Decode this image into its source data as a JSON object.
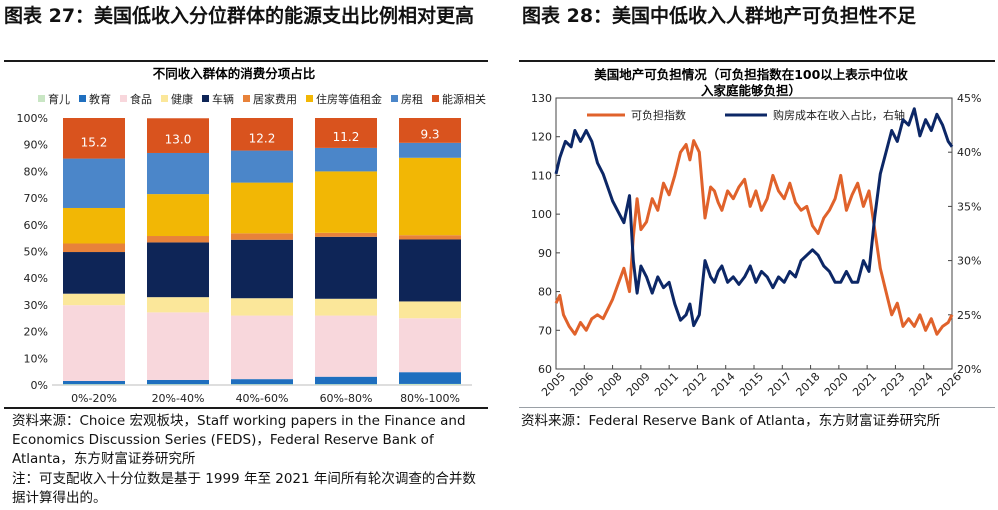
{
  "left": {
    "figure_title": "图表 27：美国低收入分位群体的能源支出比例相对更高",
    "source": "资料来源：Choice 宏观板块，Staff working papers in the Finance and Economics Discussion Series (FEDS)，Federal Reserve Bank of Atlanta，东方财富证券研究所",
    "note": "注：可支配收入十分位数是基于 1999 年至 2021 年间所有轮次调查的合并数据计算得出的。"
  },
  "right": {
    "figure_title": "图表 28：美国中低收入人群地产可负担性不足",
    "source": "资料来源：Federal Reserve Bank of Atlanta，东方财富证券研究所"
  },
  "chart_data": [
    {
      "type": "bar",
      "stacked": true,
      "percent": true,
      "title": "不同收入群体的消费分项占比",
      "categories": [
        "0%-20%",
        "20%-40%",
        "40%-60%",
        "60%-80%",
        "80%-100%"
      ],
      "ylim": [
        0,
        100
      ],
      "yticks": [
        "0%",
        "10%",
        "20%",
        "30%",
        "40%",
        "50%",
        "60%",
        "70%",
        "80%",
        "90%",
        "100%"
      ],
      "legend_position": "top",
      "series": [
        {
          "name": "育儿",
          "color": "#c9e6c4",
          "values": [
            0.3,
            0.3,
            0.3,
            0.3,
            0.4
          ]
        },
        {
          "name": "教育",
          "color": "#1f6fbf",
          "values": [
            1.2,
            1.6,
            1.9,
            2.8,
            4.4
          ]
        },
        {
          "name": "食品",
          "color": "#f8d7dc",
          "values": [
            28.4,
            25.3,
            23.8,
            22.9,
            20.2
          ]
        },
        {
          "name": "健康",
          "color": "#fbe79a",
          "values": [
            4.3,
            5.7,
            6.5,
            6.3,
            6.3
          ]
        },
        {
          "name": "车辆",
          "color": "#0e2557",
          "values": [
            15.6,
            20.5,
            21.9,
            23.2,
            23.2
          ]
        },
        {
          "name": "居家费用",
          "color": "#e8823a",
          "values": [
            3.2,
            2.4,
            2.4,
            1.5,
            1.6
          ]
        },
        {
          "name": "住房等值租金",
          "color": "#f2b705",
          "values": [
            13.3,
            15.7,
            19.0,
            23.0,
            29.0
          ]
        },
        {
          "name": "房租",
          "color": "#4b86c9",
          "values": [
            18.5,
            15.4,
            12.0,
            8.8,
            5.6
          ]
        },
        {
          "name": "能源相关",
          "color": "#d9531e",
          "values": [
            15.2,
            13.0,
            12.2,
            11.2,
            9.3
          ]
        }
      ],
      "data_labels": [
        "15.2",
        "13.0",
        "12.2",
        "11.2",
        "9.3"
      ]
    },
    {
      "type": "line",
      "title": "美国地产可负担情况（可负担指数在100以上表示中位收入家庭能够负担）",
      "legend_position": "top",
      "x_ticks": [
        "2005",
        "2006",
        "2008",
        "2009",
        "2011",
        "2012",
        "2014",
        "2015",
        "2017",
        "2018",
        "2020",
        "2021",
        "2023",
        "2024",
        "2026"
      ],
      "x_range": [
        2005,
        2026
      ],
      "left_axis": {
        "ylim": [
          60,
          130
        ],
        "ticks": [
          60,
          70,
          80,
          90,
          100,
          110,
          120,
          130
        ]
      },
      "right_axis": {
        "ylim": [
          20,
          45
        ],
        "ticks": [
          "20%",
          "25%",
          "30%",
          "35%",
          "40%",
          "45%"
        ]
      },
      "series": [
        {
          "name": "可负担指数",
          "axis": "left",
          "color": "#e0622b",
          "x": [
            2005.0,
            2005.2,
            2005.4,
            2005.7,
            2006.0,
            2006.3,
            2006.6,
            2006.9,
            2007.2,
            2007.5,
            2007.8,
            2008.0,
            2008.3,
            2008.6,
            2008.9,
            2009.1,
            2009.3,
            2009.5,
            2009.8,
            2010.1,
            2010.4,
            2010.7,
            2011.0,
            2011.3,
            2011.6,
            2011.9,
            2012.1,
            2012.3,
            2012.6,
            2012.9,
            2013.2,
            2013.4,
            2013.6,
            2013.8,
            2014.1,
            2014.4,
            2014.7,
            2015.0,
            2015.3,
            2015.6,
            2015.9,
            2016.2,
            2016.5,
            2016.8,
            2017.1,
            2017.4,
            2017.7,
            2018.0,
            2018.3,
            2018.6,
            2018.9,
            2019.2,
            2019.5,
            2019.8,
            2020.1,
            2020.4,
            2020.7,
            2021.0,
            2021.3,
            2021.6,
            2021.9,
            2022.2,
            2022.5,
            2022.8,
            2023.1,
            2023.4,
            2023.7,
            2024.0,
            2024.3,
            2024.6,
            2024.9,
            2025.2,
            2025.5,
            2025.8,
            2026.0
          ],
          "values": [
            77,
            79,
            74,
            71,
            69,
            72,
            70,
            73,
            74,
            73,
            76,
            78,
            82,
            86,
            80,
            94,
            104,
            96,
            98,
            104,
            101,
            108,
            105,
            110,
            116,
            118,
            114,
            119,
            116,
            99,
            107,
            106,
            103,
            101,
            106,
            104,
            107,
            109,
            102,
            106,
            101,
            104,
            110,
            106,
            104,
            108,
            103,
            101,
            102,
            97,
            95,
            99,
            101,
            104,
            110,
            101,
            105,
            108,
            102,
            106,
            96,
            86,
            80,
            74,
            77,
            71,
            73,
            71,
            74,
            70,
            73,
            69,
            71,
            72,
            74
          ]
        },
        {
          "name": "购房成本在收入占比，右轴",
          "axis": "right",
          "color": "#0c2766",
          "x": [
            2005.0,
            2005.2,
            2005.5,
            2005.8,
            2006.0,
            2006.3,
            2006.6,
            2006.9,
            2007.2,
            2007.5,
            2007.8,
            2008.0,
            2008.3,
            2008.6,
            2008.9,
            2009.1,
            2009.3,
            2009.5,
            2009.8,
            2010.1,
            2010.4,
            2010.7,
            2011.0,
            2011.3,
            2011.6,
            2011.9,
            2012.1,
            2012.3,
            2012.6,
            2012.9,
            2013.2,
            2013.4,
            2013.6,
            2013.8,
            2014.1,
            2014.4,
            2014.7,
            2015.0,
            2015.3,
            2015.6,
            2015.9,
            2016.2,
            2016.5,
            2016.8,
            2017.1,
            2017.4,
            2017.7,
            2018.0,
            2018.3,
            2018.6,
            2018.9,
            2019.2,
            2019.5,
            2019.8,
            2020.1,
            2020.4,
            2020.7,
            2021.0,
            2021.3,
            2021.6,
            2021.9,
            2022.2,
            2022.5,
            2022.8,
            2023.1,
            2023.4,
            2023.7,
            2024.0,
            2024.3,
            2024.6,
            2024.9,
            2025.2,
            2025.5,
            2025.8,
            2026.0
          ],
          "values": [
            38,
            39.5,
            41,
            40.5,
            42,
            41,
            42,
            41,
            39,
            38,
            36.5,
            35.5,
            34.5,
            33.5,
            36,
            30,
            27,
            29.5,
            28.5,
            27,
            28.5,
            27.5,
            28,
            26,
            24.5,
            25,
            26,
            24,
            25,
            30,
            28.5,
            28,
            29,
            29.5,
            28,
            28.5,
            27.8,
            28.5,
            29.5,
            28,
            29,
            28.5,
            27.5,
            28.5,
            28,
            29,
            28.5,
            30,
            30.5,
            31,
            30.5,
            29.5,
            29,
            28,
            28,
            29,
            28,
            28,
            30,
            29,
            34,
            38,
            40,
            42,
            41,
            43,
            42.5,
            44,
            41.5,
            43,
            42,
            43.5,
            42.5,
            41,
            40.5
          ]
        }
      ]
    }
  ]
}
